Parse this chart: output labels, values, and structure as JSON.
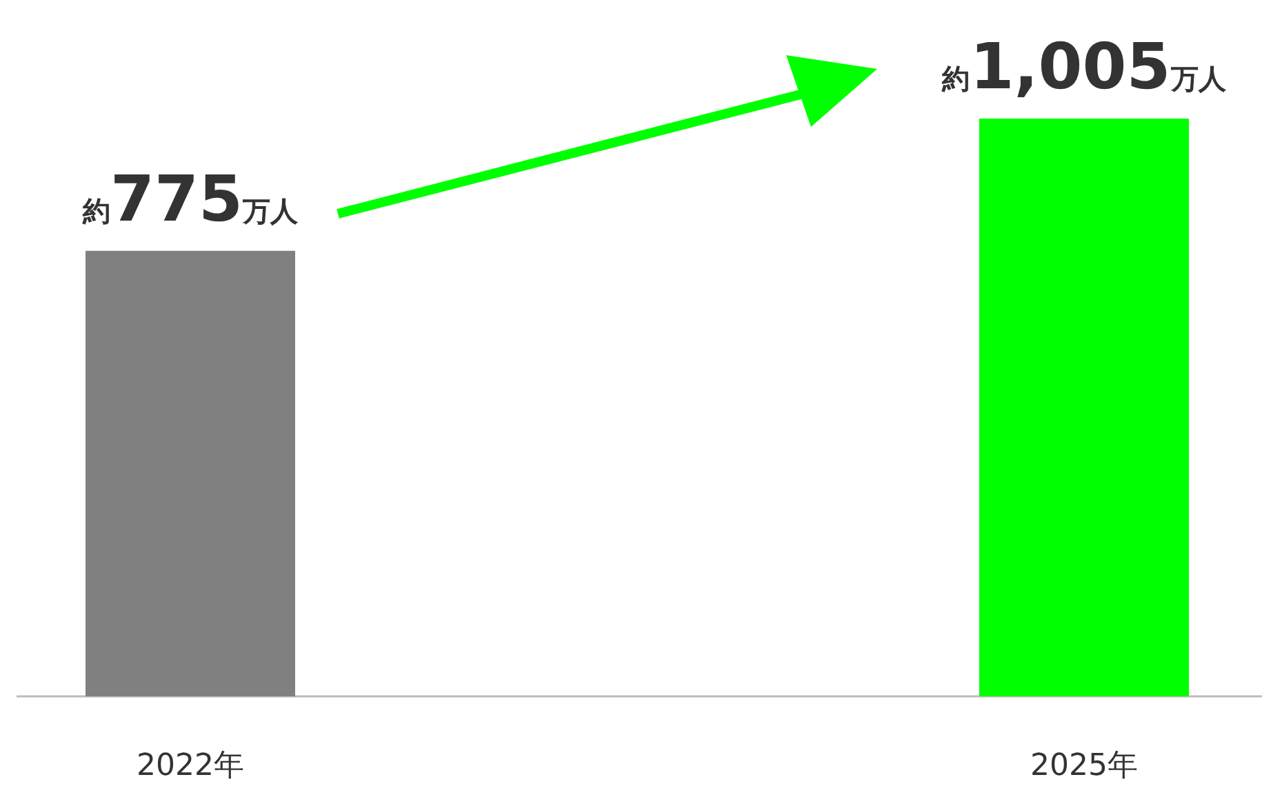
{
  "chart_data": {
    "type": "bar",
    "categories": [
      "2022年",
      "2025年"
    ],
    "values": [
      775,
      1005
    ],
    "colors": [
      "#808080",
      "#00ff00"
    ],
    "value_labels": [
      "約775万人",
      "約1,005万人"
    ]
  }
}
